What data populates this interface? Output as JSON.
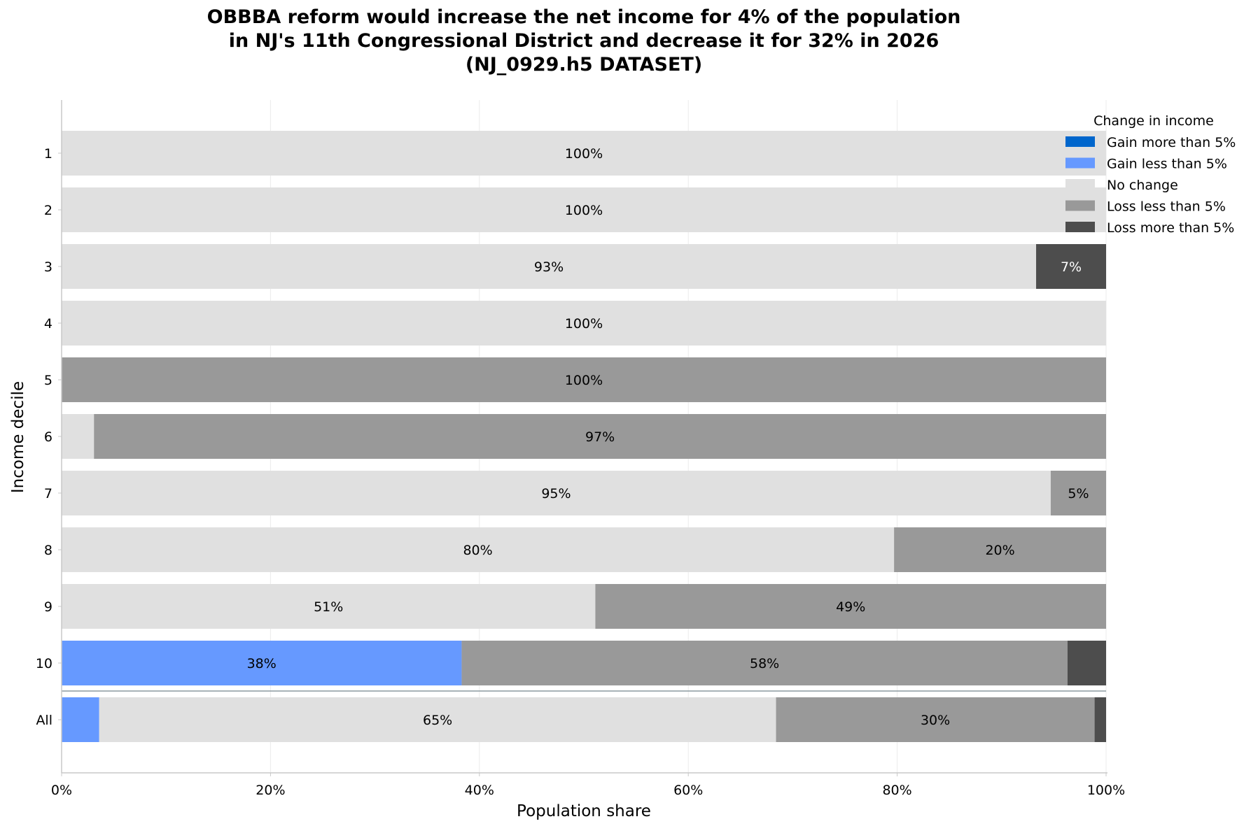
{
  "chart_data": {
    "type": "bar",
    "orientation": "horizontal",
    "stacked": true,
    "title_lines": [
      "OBBBA reform would increase the net income for 4% of the population",
      "in NJ's 11th Congressional District and decrease it for 32% in 2026",
      "(NJ_0929.h5 DATASET)"
    ],
    "xlabel": "Population share",
    "ylabel": "Income decile",
    "xlim": [
      0,
      100
    ],
    "x_ticks": [
      "0%",
      "20%",
      "40%",
      "60%",
      "80%",
      "100%"
    ],
    "x_tick_values": [
      0,
      20,
      40,
      60,
      80,
      100
    ],
    "categories": [
      "1",
      "2",
      "3",
      "4",
      "5",
      "6",
      "7",
      "8",
      "9",
      "10",
      "All"
    ],
    "grid": "vertical",
    "legend": {
      "title": "Change in income",
      "placement": "top-right"
    },
    "series": [
      {
        "name": "Gain more than 5%",
        "color": "#0066cc",
        "values": [
          0,
          0,
          0,
          0,
          0,
          0,
          0,
          0,
          0,
          0,
          0
        ],
        "labels": [
          "",
          "",
          "",
          "",
          "",
          "",
          "",
          "",
          "",
          "",
          ""
        ]
      },
      {
        "name": "Gain less than 5%",
        "color": "#6699ff",
        "values": [
          0,
          0,
          0,
          0,
          0,
          0,
          0,
          0,
          0,
          38.3,
          3.6
        ],
        "labels": [
          "",
          "",
          "",
          "",
          "",
          "",
          "",
          "",
          "",
          "38%",
          ""
        ]
      },
      {
        "name": "No change",
        "color": "#e0e0e0",
        "values": [
          100,
          100,
          93.3,
          100,
          0,
          3.1,
          94.7,
          79.7,
          51.1,
          0,
          64.8
        ],
        "labels": [
          "100%",
          "100%",
          "93%",
          "100%",
          "",
          "",
          "95%",
          "80%",
          "51%",
          "",
          "65%"
        ]
      },
      {
        "name": "Loss less than 5%",
        "color": "#999999",
        "values": [
          0,
          0,
          0,
          0,
          100,
          96.9,
          5.3,
          20.3,
          48.9,
          58.0,
          30.5
        ],
        "labels": [
          "",
          "",
          "",
          "",
          "100%",
          "97%",
          "5%",
          "20%",
          "49%",
          "58%",
          "30%"
        ]
      },
      {
        "name": "Loss more than 5%",
        "color": "#4d4d4d",
        "values": [
          0,
          0,
          6.7,
          0,
          0,
          0,
          0,
          0,
          0,
          3.7,
          1.1
        ],
        "labels": [
          "",
          "",
          "7%",
          "",
          "",
          "",
          "",
          "",
          "",
          "",
          ""
        ]
      }
    ]
  }
}
